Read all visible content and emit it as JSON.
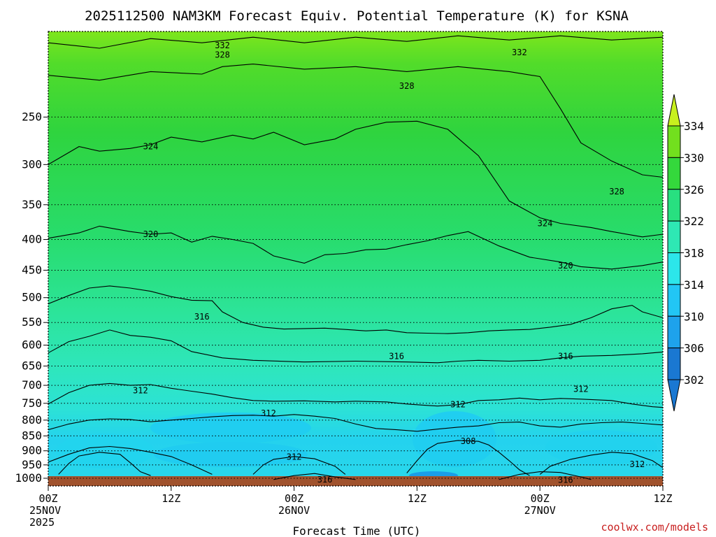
{
  "chart_data": {
    "type": "heatmap",
    "title": "2025112500 NAM3KM Forecast Equiv. Potential Temperature (K) for KSNA",
    "xlabel": "Forecast Time (UTC)",
    "ylabel": "",
    "x_range_hours": [
      0,
      60
    ],
    "y_range_hPa": [
      1030,
      180
    ],
    "y_scale": "log-pressure",
    "y_ticks": [
      250,
      300,
      350,
      400,
      450,
      500,
      550,
      600,
      650,
      700,
      750,
      800,
      850,
      900,
      950,
      1000
    ],
    "x_ticks": [
      {
        "hour": 0,
        "lines": [
          "00Z",
          "25NOV",
          "2025"
        ]
      },
      {
        "hour": 12,
        "lines": [
          "12Z"
        ]
      },
      {
        "hour": 24,
        "lines": [
          "00Z",
          "26NOV"
        ]
      },
      {
        "hour": 36,
        "lines": [
          "12Z"
        ]
      },
      {
        "hour": 48,
        "lines": [
          "00Z",
          "27NOV"
        ]
      },
      {
        "hour": 60,
        "lines": [
          "12Z"
        ]
      }
    ],
    "grid": "dotted horizontal at pressure ticks",
    "colorbar": {
      "levels": [
        302,
        306,
        310,
        314,
        318,
        322,
        326,
        330,
        334
      ],
      "colors": [
        "#1a78d2",
        "#1ea2ec",
        "#22c6f5",
        "#2ce6ea",
        "#2ee8b4",
        "#28e080",
        "#34d83c",
        "#72e01e",
        "#c8f01e"
      ],
      "placement": "right"
    },
    "contour_isolines": [
      {
        "value": 332,
        "points": [
          [
            0,
            188
          ],
          [
            5,
            192
          ],
          [
            10,
            185
          ],
          [
            15,
            188
          ],
          [
            20,
            184
          ],
          [
            25,
            188
          ],
          [
            30,
            184
          ],
          [
            35,
            187
          ],
          [
            40,
            183
          ],
          [
            45,
            186
          ],
          [
            50,
            183
          ],
          [
            55,
            186
          ],
          [
            60,
            184
          ]
        ]
      },
      {
        "value": 328,
        "points": [
          [
            0,
            213
          ],
          [
            5,
            217
          ],
          [
            10,
            210
          ],
          [
            15,
            212
          ],
          [
            17,
            206
          ],
          [
            20,
            204
          ],
          [
            25,
            208
          ],
          [
            30,
            206
          ],
          [
            35,
            210
          ],
          [
            40,
            206
          ],
          [
            45,
            210
          ],
          [
            48,
            214
          ],
          [
            50,
            242
          ],
          [
            52,
            276
          ],
          [
            55,
            296
          ],
          [
            58,
            312
          ],
          [
            60,
            315
          ]
        ]
      },
      {
        "value": 324,
        "points": [
          [
            0,
            300
          ],
          [
            3,
            280
          ],
          [
            5,
            285
          ],
          [
            8,
            282
          ],
          [
            10,
            278
          ],
          [
            12,
            270
          ],
          [
            15,
            275
          ],
          [
            18,
            268
          ],
          [
            20,
            272
          ],
          [
            22,
            265
          ],
          [
            25,
            278
          ],
          [
            28,
            272
          ],
          [
            30,
            262
          ],
          [
            33,
            255
          ],
          [
            36,
            254
          ],
          [
            39,
            262
          ],
          [
            42,
            290
          ],
          [
            45,
            345
          ],
          [
            48,
            368
          ],
          [
            50,
            376
          ],
          [
            53,
            382
          ],
          [
            55,
            388
          ],
          [
            58,
            396
          ],
          [
            60,
            392
          ]
        ]
      },
      {
        "value": 320,
        "points": [
          [
            0,
            398
          ],
          [
            3,
            390
          ],
          [
            5,
            380
          ],
          [
            8,
            388
          ],
          [
            10,
            392
          ],
          [
            12,
            390
          ],
          [
            14,
            404
          ],
          [
            16,
            395
          ],
          [
            18,
            400
          ],
          [
            20,
            406
          ],
          [
            22,
            426
          ],
          [
            25,
            438
          ],
          [
            27,
            424
          ],
          [
            29,
            422
          ],
          [
            31,
            416
          ],
          [
            33,
            415
          ],
          [
            35,
            408
          ],
          [
            37,
            402
          ],
          [
            39,
            394
          ],
          [
            41,
            388
          ],
          [
            44,
            410
          ],
          [
            47,
            428
          ],
          [
            50,
            436
          ],
          [
            52,
            444
          ],
          [
            55,
            448
          ],
          [
            58,
            442
          ],
          [
            60,
            436
          ]
        ]
      },
      {
        "value": 316,
        "points": [
          [
            0,
            512
          ],
          [
            2,
            496
          ],
          [
            4,
            482
          ],
          [
            6,
            478
          ],
          [
            8,
            482
          ],
          [
            10,
            488
          ],
          [
            12,
            498
          ],
          [
            14,
            505
          ],
          [
            16,
            506
          ],
          [
            17,
            528
          ],
          [
            19,
            550
          ],
          [
            21,
            560
          ],
          [
            23,
            564
          ],
          [
            25,
            563
          ],
          [
            27,
            562
          ],
          [
            29,
            565
          ],
          [
            31,
            568
          ],
          [
            33,
            566
          ],
          [
            35,
            572
          ],
          [
            37,
            573
          ],
          [
            39,
            574
          ],
          [
            41,
            572
          ],
          [
            43,
            568
          ],
          [
            45,
            566
          ],
          [
            47,
            565
          ],
          [
            49,
            560
          ],
          [
            51,
            554
          ],
          [
            53,
            540
          ],
          [
            55,
            522
          ],
          [
            57,
            515
          ],
          [
            58,
            528
          ],
          [
            60,
            540
          ]
        ]
      },
      {
        "value": 316,
        "points": [
          [
            0,
            618
          ],
          [
            2,
            592
          ],
          [
            4,
            580
          ],
          [
            6,
            566
          ],
          [
            8,
            578
          ],
          [
            10,
            582
          ],
          [
            12,
            590
          ],
          [
            14,
            615
          ],
          [
            17,
            630
          ],
          [
            20,
            636
          ],
          [
            25,
            640
          ],
          [
            30,
            638
          ],
          [
            35,
            640
          ],
          [
            38,
            642
          ],
          [
            40,
            638
          ],
          [
            42,
            636
          ],
          [
            45,
            638
          ],
          [
            48,
            636
          ],
          [
            50,
            630
          ],
          [
            52,
            626
          ],
          [
            55,
            624
          ],
          [
            58,
            620
          ],
          [
            60,
            616
          ]
        ]
      },
      {
        "value": 312,
        "points": [
          [
            0,
            752
          ],
          [
            2,
            720
          ],
          [
            4,
            700
          ],
          [
            6,
            695
          ],
          [
            8,
            700
          ],
          [
            10,
            698
          ],
          [
            12,
            708
          ],
          [
            14,
            716
          ],
          [
            16,
            724
          ],
          [
            18,
            734
          ],
          [
            20,
            742
          ],
          [
            22,
            744
          ],
          [
            25,
            743
          ],
          [
            28,
            746
          ],
          [
            30,
            744
          ],
          [
            33,
            746
          ],
          [
            35,
            752
          ],
          [
            37,
            756
          ],
          [
            38,
            758
          ],
          [
            40,
            754
          ],
          [
            42,
            742
          ],
          [
            44,
            740
          ],
          [
            46,
            735
          ],
          [
            48,
            740
          ],
          [
            50,
            736
          ],
          [
            52,
            738
          ],
          [
            55,
            742
          ],
          [
            57,
            752
          ],
          [
            59,
            760
          ],
          [
            60,
            762
          ]
        ]
      },
      {
        "value": 312,
        "points": [
          [
            0,
            830
          ],
          [
            2,
            812
          ],
          [
            4,
            800
          ],
          [
            6,
            796
          ],
          [
            8,
            798
          ],
          [
            10,
            805
          ],
          [
            12,
            800
          ],
          [
            14,
            795
          ],
          [
            16,
            790
          ],
          [
            18,
            786
          ],
          [
            20,
            785
          ],
          [
            22,
            788
          ],
          [
            24,
            783
          ],
          [
            26,
            788
          ],
          [
            28,
            795
          ],
          [
            30,
            812
          ],
          [
            32,
            826
          ],
          [
            34,
            830
          ],
          [
            36,
            835
          ],
          [
            38,
            828
          ],
          [
            40,
            822
          ],
          [
            42,
            818
          ],
          [
            44,
            808
          ],
          [
            46,
            806
          ],
          [
            48,
            818
          ],
          [
            50,
            822
          ],
          [
            52,
            812
          ],
          [
            54,
            808
          ],
          [
            56,
            806
          ],
          [
            58,
            810
          ],
          [
            60,
            815
          ]
        ]
      },
      {
        "value": 308,
        "points": [
          [
            35,
            980
          ],
          [
            36,
            935
          ],
          [
            37,
            895
          ],
          [
            38,
            875
          ],
          [
            40,
            865
          ],
          [
            42,
            868
          ],
          [
            43,
            880
          ],
          [
            44,
            905
          ],
          [
            45,
            935
          ],
          [
            46,
            968
          ],
          [
            47,
            990
          ]
        ]
      },
      {
        "value": 308,
        "points": [
          [
            1,
            985
          ],
          [
            2,
            945
          ],
          [
            3,
            918
          ],
          [
            5,
            905
          ],
          [
            7,
            912
          ],
          [
            8,
            942
          ],
          [
            9,
            975
          ],
          [
            10,
            990
          ]
        ]
      },
      {
        "value": 312,
        "points": [
          [
            0,
            940
          ],
          [
            2,
            912
          ],
          [
            4,
            890
          ],
          [
            6,
            885
          ],
          [
            8,
            892
          ],
          [
            10,
            905
          ],
          [
            12,
            920
          ],
          [
            14,
            950
          ],
          [
            16,
            985
          ]
        ]
      },
      {
        "value": 312,
        "points": [
          [
            20,
            985
          ],
          [
            21,
            950
          ],
          [
            22,
            930
          ],
          [
            24,
            920
          ],
          [
            26,
            928
          ],
          [
            28,
            955
          ],
          [
            29,
            985
          ]
        ]
      },
      {
        "value": 312,
        "points": [
          [
            48,
            985
          ],
          [
            49,
            955
          ],
          [
            51,
            930
          ],
          [
            53,
            915
          ],
          [
            55,
            905
          ],
          [
            57,
            910
          ],
          [
            59,
            935
          ],
          [
            60,
            960
          ]
        ]
      },
      {
        "value": 316,
        "points": [
          [
            22,
            1005
          ],
          [
            24,
            990
          ],
          [
            26,
            982
          ],
          [
            28,
            995
          ],
          [
            30,
            1005
          ]
        ]
      },
      {
        "value": 316,
        "points": [
          [
            44,
            1005
          ],
          [
            46,
            985
          ],
          [
            48,
            975
          ],
          [
            50,
            978
          ],
          [
            52,
            995
          ],
          [
            53,
            1005
          ]
        ]
      }
    ],
    "contour_labels": [
      {
        "text": "332",
        "hour": 17,
        "hPa": 190
      },
      {
        "text": "332",
        "hour": 46,
        "hPa": 195
      },
      {
        "text": "328",
        "hour": 17,
        "hPa": 197
      },
      {
        "text": "328",
        "hour": 35,
        "hPa": 222
      },
      {
        "text": "328",
        "hour": 55.5,
        "hPa": 333
      },
      {
        "text": "324",
        "hour": 10,
        "hPa": 280
      },
      {
        "text": "324",
        "hour": 48.5,
        "hPa": 376
      },
      {
        "text": "320",
        "hour": 10,
        "hPa": 392
      },
      {
        "text": "320",
        "hour": 50.5,
        "hPa": 442
      },
      {
        "text": "316",
        "hour": 15,
        "hPa": 538
      },
      {
        "text": "316",
        "hour": 34,
        "hPa": 626
      },
      {
        "text": "316",
        "hour": 50.5,
        "hPa": 626
      },
      {
        "text": "316",
        "hour": 27,
        "hPa": 1005
      },
      {
        "text": "316",
        "hour": 50.5,
        "hPa": 1007
      },
      {
        "text": "312",
        "hour": 9,
        "hPa": 714
      },
      {
        "text": "312",
        "hour": 21.5,
        "hPa": 779
      },
      {
        "text": "312",
        "hour": 40,
        "hPa": 753
      },
      {
        "text": "312",
        "hour": 52,
        "hPa": 710
      },
      {
        "text": "312",
        "hour": 24,
        "hPa": 922
      },
      {
        "text": "312",
        "hour": 57.5,
        "hPa": 948
      },
      {
        "text": "308",
        "hour": 41,
        "hPa": 867
      }
    ]
  },
  "watermark": "coolwx.com/models"
}
